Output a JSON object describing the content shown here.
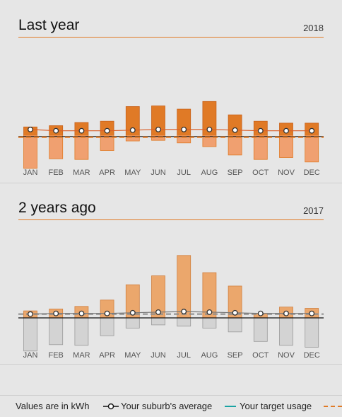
{
  "colors": {
    "accent": "#e07a26",
    "bar_last_pos": "#e07a26",
    "bar_last_neg": "#f0a070",
    "bar_prev_pos": "#eba76c",
    "bar_prev_neg": "#d3d3d3",
    "target": "#1aa3a3"
  },
  "sections": [
    {
      "title": "Last year",
      "year": "2018",
      "chart_data": {
        "type": "bar",
        "categories": [
          "JAN",
          "FEB",
          "MAR",
          "APR",
          "MAY",
          "JUN",
          "JUL",
          "AUG",
          "SEP",
          "OCT",
          "NOV",
          "DEC"
        ],
        "series": [
          {
            "values": [
              13,
              15,
              20,
              22,
              45,
              46,
              41,
              53,
              32,
              22,
              19,
              19
            ]
          },
          {
            "values": [
              -52,
              -37,
              -38,
              -24,
              -9,
              -8,
              -12,
              -18,
              -31,
              -38,
              -35,
              -42
            ]
          }
        ],
        "average": [
          9,
          7,
          7,
          7,
          8,
          9,
          9,
          9,
          8,
          7,
          7,
          7
        ],
        "target": -2,
        "dashed_line": -3
      }
    },
    {
      "title": "2 years ago",
      "year": "2017",
      "chart_data": {
        "type": "bar",
        "categories": [
          "JAN",
          "FEB",
          "MAR",
          "APR",
          "MAY",
          "JUN",
          "JUL",
          "AUG",
          "SEP",
          "OCT",
          "NOV",
          "DEC"
        ],
        "series": [
          {
            "values": [
              11,
              14,
              18,
              28,
              52,
              66,
              98,
              71,
              50,
              7,
              17,
              15
            ]
          },
          {
            "values": [
              -52,
              -42,
              -43,
              -28,
              -16,
              -11,
              -13,
              -16,
              -22,
              -37,
              -43,
              -46
            ]
          }
        ],
        "average": [
          6,
          7,
          7,
          7,
          8,
          9,
          10,
          9,
          8,
          7,
          7,
          7
        ],
        "target": 0,
        "dashed_line": 6
      }
    }
  ],
  "legend": {
    "units": "Values are in kWh",
    "average_label": "Your suburb's average",
    "target_label": "Your target usage"
  }
}
